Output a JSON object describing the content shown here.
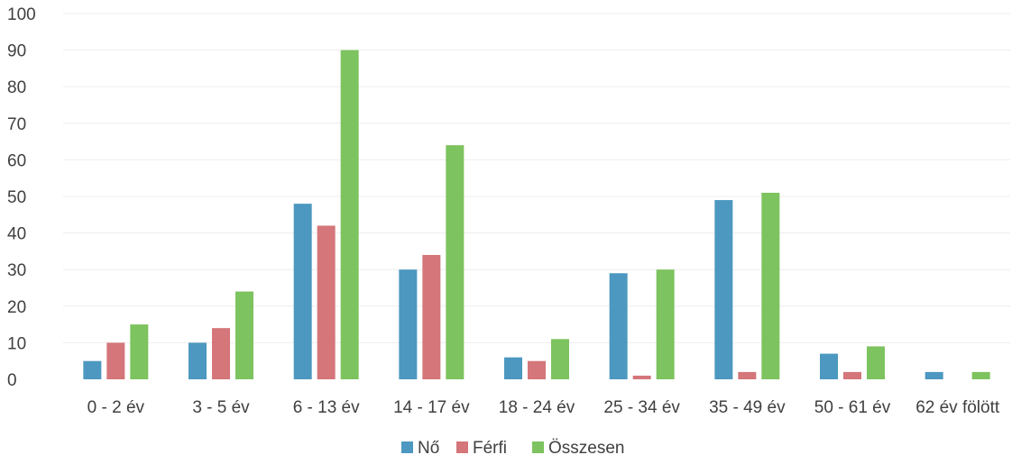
{
  "colors": {
    "no": "#4c98c0",
    "ferfi": "#d4767a",
    "osszesen": "#7dc35f",
    "text": "#404040",
    "grid": "#ededed"
  },
  "chart_data": {
    "type": "bar",
    "categories": [
      "0 - 2 év",
      "3 - 5 év",
      "6 - 13 év",
      "14 - 17 év",
      "18 - 24 év",
      "25 - 34 év",
      "35 - 49 év",
      "50 - 61 év",
      "62 év fölött"
    ],
    "series": [
      {
        "name": "Nő",
        "values": [
          5,
          10,
          48,
          30,
          6,
          29,
          49,
          7,
          2
        ]
      },
      {
        "name": "Férfi",
        "values": [
          10,
          14,
          42,
          34,
          5,
          1,
          2,
          2,
          0
        ]
      },
      {
        "name": "Összesen",
        "values": [
          15,
          24,
          90,
          64,
          11,
          30,
          51,
          9,
          2
        ]
      }
    ],
    "ylim": [
      0,
      100
    ],
    "yticks": [
      "0",
      "10",
      "20",
      "30",
      "40",
      "50",
      "60",
      "70",
      "80",
      "90",
      "100"
    ],
    "grid": true,
    "legend_position": "bottom"
  }
}
